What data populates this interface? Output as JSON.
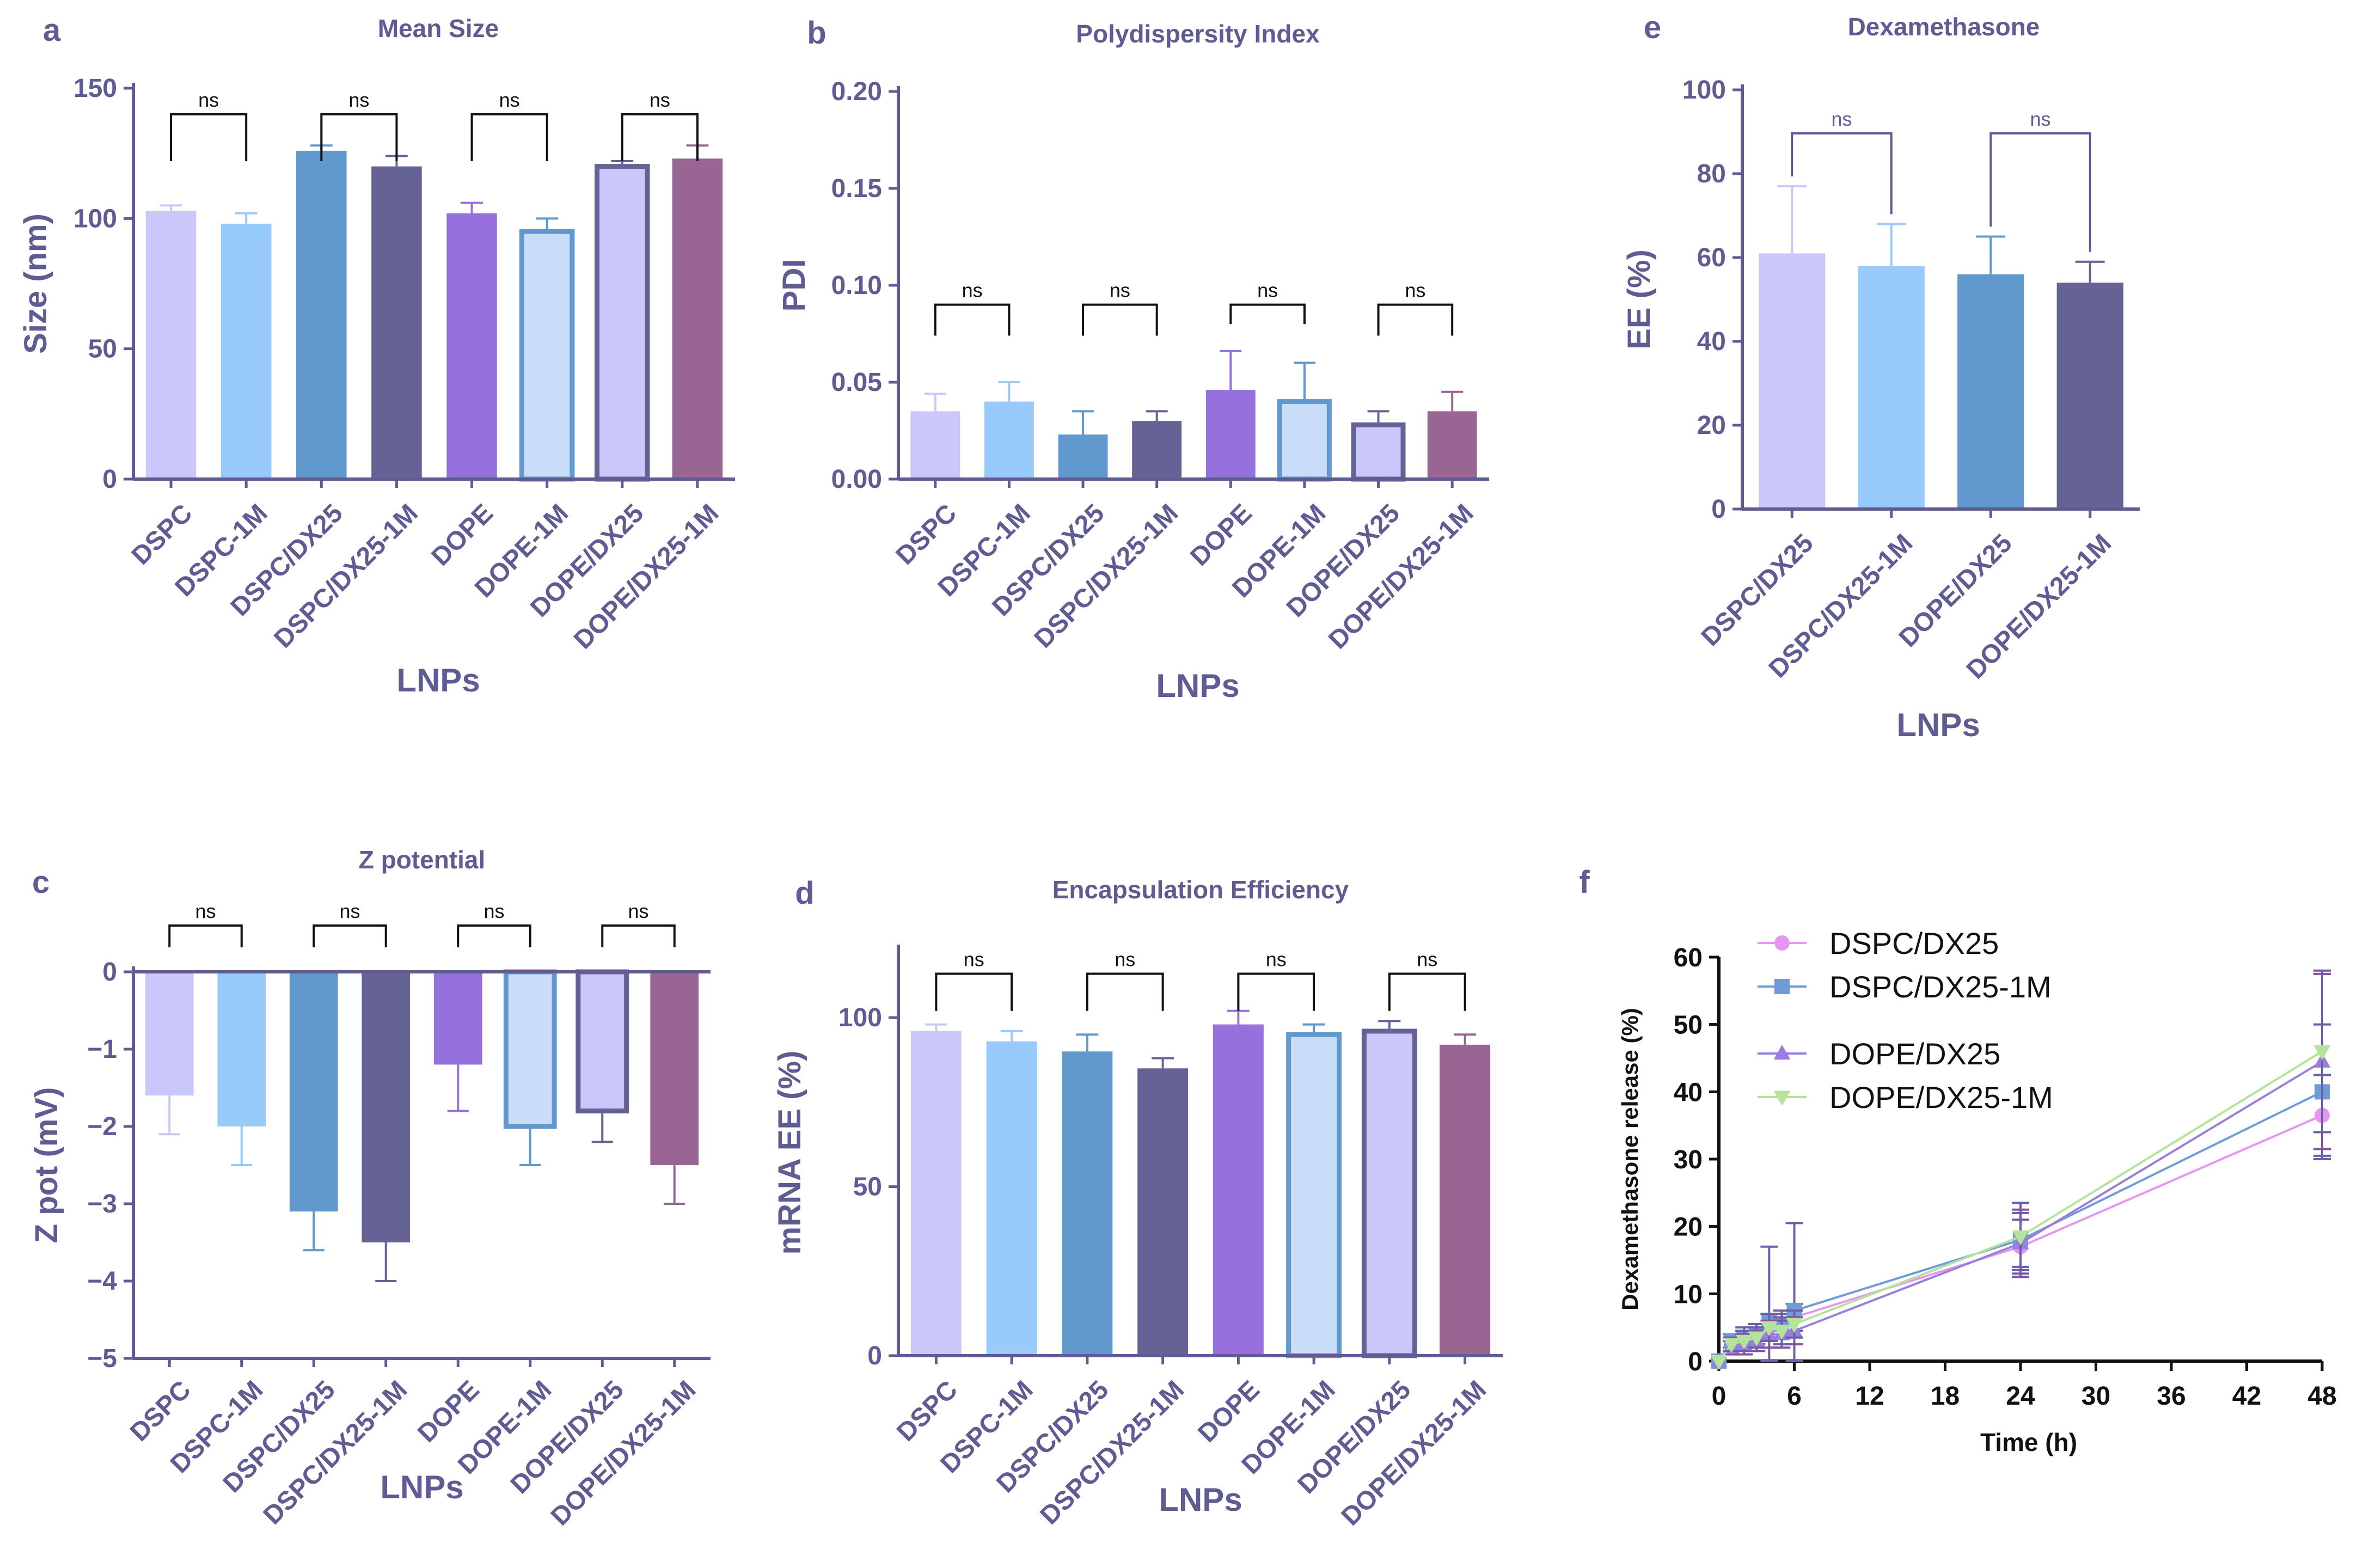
{
  "colors": {
    "axis": "#5f5c94",
    "text": "#5f5c94",
    "bracket": "#111111",
    "bar_fills": [
      "#cac8fa",
      "#98cbfc",
      "#6198cd",
      "#656296",
      "#9670dd",
      "#c9ddf8",
      "#cac8fa",
      "#996592"
    ],
    "bar_edges": [
      "#cac8fa",
      "#98cbfc",
      "#6198cd",
      "#656296",
      "#9670dd",
      "#6198cd",
      "#656296",
      "#996592"
    ],
    "ee_fills": [
      "#cac8fa",
      "#98cbfc",
      "#6198cd",
      "#656296"
    ],
    "release_series": [
      "#e596ee",
      "#6f9bd6",
      "#9a7edd",
      "#b6e39b"
    ]
  },
  "chart_data": [
    {
      "id": "a",
      "panel_letter": "a",
      "type": "bar",
      "title": "Mean Size",
      "xlabel": "LNPs",
      "ylabel": "Size (nm)",
      "categories": [
        "DSPC",
        "DSPC-1M",
        "DSPC/DX25",
        "DSPC/DX25-1M",
        "DOPE",
        "DOPE-1M",
        "DOPE/DX25",
        "DOPE/DX25-1M"
      ],
      "values": [
        103,
        98,
        126,
        120,
        102,
        95,
        120,
        123
      ],
      "errors": [
        2,
        4,
        2,
        4,
        4,
        5,
        2,
        5
      ],
      "ylim": [
        0,
        150
      ],
      "yticks": [
        "0",
        "50",
        "100",
        "150"
      ],
      "significance": [
        {
          "pair": [
            0,
            1
          ],
          "label": "ns"
        },
        {
          "pair": [
            2,
            3
          ],
          "label": "ns"
        },
        {
          "pair": [
            4,
            5
          ],
          "label": "ns"
        },
        {
          "pair": [
            6,
            7
          ],
          "label": "ns"
        }
      ]
    },
    {
      "id": "b",
      "panel_letter": "b",
      "type": "bar",
      "title": "Polydispersity Index",
      "xlabel": "LNPs",
      "ylabel": "PDI",
      "categories": [
        "DSPC",
        "DSPC-1M",
        "DSPC/DX25",
        "DSPC/DX25-1M",
        "DOPE",
        "DOPE-1M",
        "DOPE/DX25",
        "DOPE/DX25-1M"
      ],
      "values": [
        0.035,
        0.04,
        0.023,
        0.03,
        0.046,
        0.04,
        0.028,
        0.035
      ],
      "errors": [
        0.009,
        0.01,
        0.012,
        0.005,
        0.02,
        0.02,
        0.007,
        0.01
      ],
      "ylim": [
        0,
        0.2
      ],
      "yticks": [
        "0.00",
        "0.05",
        "0.10",
        "0.15",
        "0.20"
      ],
      "significance": [
        {
          "pair": [
            0,
            1
          ],
          "label": "ns"
        },
        {
          "pair": [
            2,
            3
          ],
          "label": "ns"
        },
        {
          "pair": [
            4,
            5
          ],
          "label": "ns"
        },
        {
          "pair": [
            6,
            7
          ],
          "label": "ns"
        }
      ]
    },
    {
      "id": "c",
      "panel_letter": "c",
      "type": "bar",
      "title": "Z potential",
      "xlabel": "LNPs",
      "ylabel": "Z pot (mV)",
      "categories": [
        "DSPC",
        "DSPC-1M",
        "DSPC/DX25",
        "DSPC/DX25-1M",
        "DOPE",
        "DOPE-1M",
        "DOPE/DX25",
        "DOPE/DX25-1M"
      ],
      "values": [
        -1.6,
        -2.0,
        -3.1,
        -3.5,
        -1.2,
        -2.0,
        -1.8,
        -2.5
      ],
      "errors": [
        0.5,
        0.5,
        0.5,
        0.5,
        0.6,
        0.5,
        0.4,
        0.5
      ],
      "ylim": [
        -5,
        0
      ],
      "yticks": [
        "−5",
        "−4",
        "−3",
        "−2",
        "−1",
        "0"
      ],
      "significance": [
        {
          "pair": [
            0,
            1
          ],
          "label": "ns"
        },
        {
          "pair": [
            2,
            3
          ],
          "label": "ns"
        },
        {
          "pair": [
            4,
            5
          ],
          "label": "ns"
        },
        {
          "pair": [
            6,
            7
          ],
          "label": "ns"
        }
      ]
    },
    {
      "id": "d",
      "panel_letter": "d",
      "type": "bar",
      "title": "Encapsulation Efficiency",
      "xlabel": "LNPs",
      "ylabel": "mRNA EE (%)",
      "categories": [
        "DSPC",
        "DSPC-1M",
        "DSPC/DX25",
        "DSPC/DX25-1M",
        "DOPE",
        "DOPE-1M",
        "DOPE/DX25",
        "DOPE/DX25-1M"
      ],
      "values": [
        96,
        93,
        90,
        85,
        98,
        95,
        96,
        92
      ],
      "errors": [
        2,
        3,
        5,
        3,
        4,
        3,
        3,
        3
      ],
      "ylim": [
        0,
        120
      ],
      "yticks": [
        "0",
        "50",
        "100"
      ],
      "significance": [
        {
          "pair": [
            0,
            1
          ],
          "label": "ns"
        },
        {
          "pair": [
            2,
            3
          ],
          "label": "ns"
        },
        {
          "pair": [
            4,
            5
          ],
          "label": "ns"
        },
        {
          "pair": [
            6,
            7
          ],
          "label": "ns"
        }
      ]
    },
    {
      "id": "e",
      "panel_letter": "e",
      "type": "bar",
      "title": "Dexamethasone",
      "xlabel": "LNPs",
      "ylabel": "EE (%)",
      "categories": [
        "DSPC/DX25",
        "DSPC/DX25-1M",
        "DOPE/DX25",
        "DOPE/DX25-1M"
      ],
      "values": [
        61,
        58,
        56,
        54
      ],
      "errors": [
        16,
        10,
        9,
        5
      ],
      "ylim": [
        0,
        100
      ],
      "yticks": [
        "0",
        "20",
        "40",
        "60",
        "80",
        "100"
      ],
      "significance": [
        {
          "pair": [
            0,
            1
          ],
          "label": "ns"
        },
        {
          "pair": [
            2,
            3
          ],
          "label": "ns"
        }
      ]
    },
    {
      "id": "f",
      "panel_letter": "f",
      "type": "line",
      "xlabel": "Time (h)",
      "ylabel": "Dexamethasone release (%)",
      "xlim": [
        0,
        48
      ],
      "ylim": [
        0,
        60
      ],
      "xticks": [
        "0",
        "6",
        "12",
        "18",
        "24",
        "30",
        "36",
        "42",
        "48"
      ],
      "yticks": [
        "0",
        "10",
        "20",
        "30",
        "40",
        "50",
        "60"
      ],
      "x": [
        0,
        1,
        2,
        3,
        4,
        5,
        6,
        24,
        48
      ],
      "series": [
        {
          "name": "DSPC/DX25",
          "marker": "circle",
          "values": [
            0,
            2.5,
            3,
            4,
            5,
            5.5,
            6.5,
            17,
            36.5
          ],
          "errors": [
            0,
            1,
            1.5,
            1.5,
            2,
            1.5,
            2,
            4,
            6
          ]
        },
        {
          "name": "DSPC/DX25-1M",
          "marker": "square",
          "values": [
            0,
            3,
            3.5,
            4,
            6,
            5.5,
            7.5,
            18,
            40
          ],
          "errors": [
            0,
            1,
            1.5,
            1.5,
            11,
            2,
            13,
            4,
            10
          ]
        },
        {
          "name": "DOPE/DX25",
          "marker": "triangle-up",
          "values": [
            0,
            2,
            2.5,
            3,
            4,
            4,
            4.5,
            17.5,
            44.5
          ],
          "errors": [
            0,
            1,
            1.5,
            1.5,
            2,
            2,
            2,
            5,
            13
          ]
        },
        {
          "name": "DOPE/DX25-1M",
          "marker": "triangle-down",
          "values": [
            0,
            2.5,
            3,
            3.5,
            5,
            4.5,
            5.5,
            18.5,
            46
          ],
          "errors": [
            0,
            1,
            1.5,
            1.5,
            2,
            2,
            2,
            5,
            12
          ]
        }
      ]
    }
  ]
}
